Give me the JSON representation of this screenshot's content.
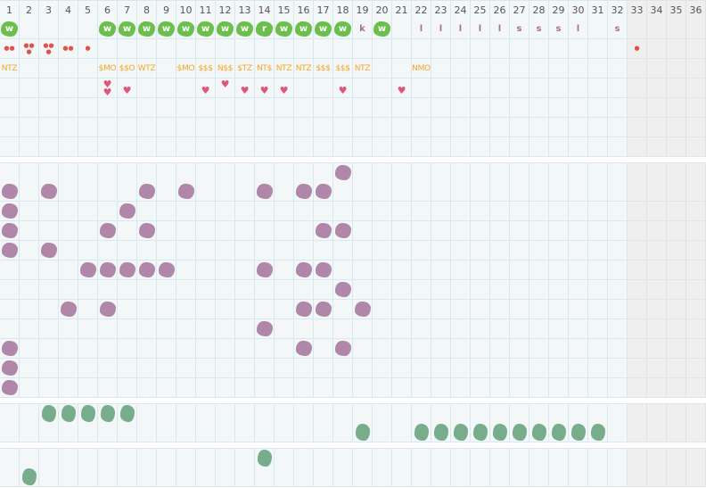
{
  "columns": [
    "1",
    "2",
    "3",
    "4",
    "5",
    "6",
    "7",
    "8",
    "9",
    "10",
    "11",
    "12",
    "13",
    "14",
    "15",
    "16",
    "17",
    "18",
    "19",
    "20",
    "21",
    "22",
    "23",
    "24",
    "25",
    "26",
    "27",
    "28",
    "29",
    "30",
    "31",
    "32",
    "33",
    "34",
    "35",
    "36"
  ],
  "weekend_columns": [
    33,
    34,
    35,
    36
  ],
  "colors": {
    "green_marker": "#6cbf4c",
    "purple_marker": "#b087a9",
    "teal_marker": "#78ad8c",
    "text_orange": "#f5a623",
    "heart": "#e0557a",
    "drop": "#e0524a",
    "letter": "#a86e95",
    "grid": "#d6e9f1"
  },
  "top_section": {
    "letters_row": {
      "1": "w",
      "6": "w",
      "7": "w",
      "8": "w",
      "9": "w",
      "10": "w",
      "11": "w",
      "12": "w",
      "13": "w",
      "14": "r",
      "15": "w",
      "16": "w",
      "17": "w",
      "18": "w",
      "19": "k",
      "20": "w",
      "22": "l",
      "23": "l",
      "24": "l",
      "25": "l",
      "26": "l",
      "27": "s",
      "28": "s",
      "29": "s",
      "30": "l",
      "32": "s"
    },
    "drops_row": {
      "1": 2,
      "2": 3,
      "3": 3,
      "4": 2,
      "5": 1,
      "33": 1
    },
    "text_row": {
      "1": "NTZ",
      "6": "$MO",
      "7": "$$O",
      "8": "WTZ",
      "10": "$MO",
      "11": "$$$",
      "12": "N$$",
      "13": "$TZ",
      "14": "NT$",
      "15": "NTZ",
      "16": "NTZ",
      "17": "$$$",
      "18": "$$$",
      "19": "NTZ",
      "22": "NMO"
    },
    "hearts_row": {
      "6": 2,
      "7": 1,
      "11": 1,
      "12": 1,
      "13": 1,
      "14": 1,
      "15": 1,
      "18": 1,
      "21": 1
    },
    "empty_rows": 3
  },
  "purple_section": [
    [
      18
    ],
    [
      1,
      3,
      8,
      10,
      14,
      16,
      17
    ],
    [
      1,
      7
    ],
    [
      1,
      6,
      8,
      17,
      18
    ],
    [
      1,
      3
    ],
    [
      5,
      6,
      7,
      8,
      9,
      14,
      16,
      17
    ],
    [
      18
    ],
    [
      4,
      6,
      16,
      17,
      19
    ],
    [
      14
    ],
    [
      1,
      16,
      18
    ],
    [
      1
    ],
    [
      1
    ]
  ],
  "teal_section_a": [
    [
      3,
      4,
      5,
      6,
      7
    ],
    [
      19,
      22,
      23,
      24,
      25,
      26,
      27,
      28,
      29,
      30,
      31
    ]
  ],
  "teal_section_b": [
    [
      14
    ],
    [
      2
    ]
  ]
}
